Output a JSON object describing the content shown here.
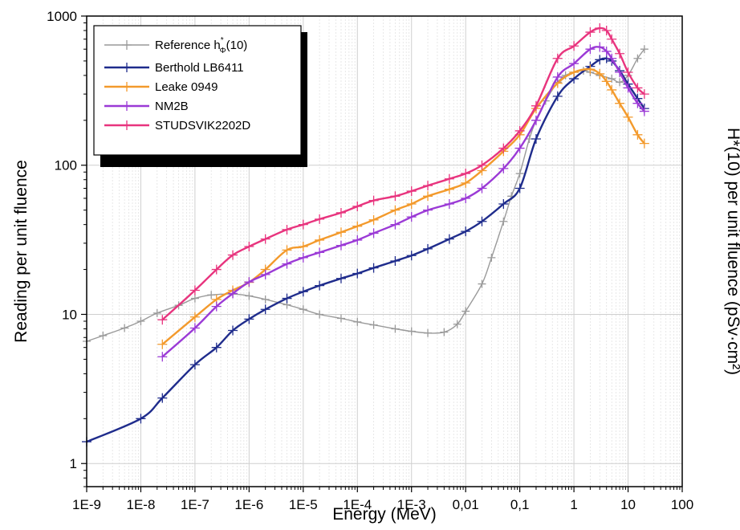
{
  "chart_data": {
    "type": "line",
    "xlabel": "Energy (MeV)",
    "ylabel": "Reading per unit fluence",
    "y2label": "H*(10) per unit fluence (pSv·cm²)",
    "xscale": "log",
    "yscale": "log",
    "xlim": [
      1e-09,
      100
    ],
    "ylim": [
      0.7,
      1000
    ],
    "x_ticks": [
      "1E-9",
      "1E-8",
      "1E-7",
      "1E-6",
      "1E-5",
      "1E-4",
      "1E-3",
      "0,01",
      "0,1",
      "1",
      "10",
      "100"
    ],
    "y_ticks": [
      "1",
      "10",
      "100",
      "1000"
    ],
    "grid": true,
    "legend_position": "top-left",
    "series": [
      {
        "name": "Reference h*Φ(10)",
        "legend_main": "Reference h",
        "legend_sup": "*",
        "legend_sub": "Φ",
        "legend_tail": "(10)",
        "color": "#9a9a9a",
        "x": [
          1e-09,
          2e-09,
          5e-09,
          1e-08,
          2e-08,
          5e-08,
          1e-07,
          2e-07,
          5e-07,
          1e-06,
          2e-06,
          5e-06,
          1e-05,
          2e-05,
          5e-05,
          0.0001,
          0.0002,
          0.0005,
          0.001,
          0.002,
          0.004,
          0.007,
          0.01,
          0.02,
          0.03,
          0.05,
          0.07,
          0.1,
          0.15,
          0.2,
          0.3,
          0.5,
          0.7,
          1,
          1.5,
          2,
          3,
          5,
          7,
          10,
          15,
          20
        ],
        "values": [
          6.6,
          7.2,
          8.1,
          9.0,
          10.2,
          11.5,
          12.8,
          13.5,
          13.7,
          13.3,
          12.6,
          11.6,
          10.8,
          10.0,
          9.4,
          8.9,
          8.5,
          8.0,
          7.7,
          7.5,
          7.6,
          8.6,
          10.5,
          16,
          24,
          42,
          62,
          88,
          150,
          200,
          270,
          360,
          400,
          420,
          430,
          420,
          400,
          380,
          360,
          400,
          520,
          600
        ]
      },
      {
        "name": "Berthold LB6411",
        "color": "#1f2c8c",
        "x": [
          1e-09,
          1e-08,
          2.5e-08,
          1e-07,
          2.5e-07,
          5e-07,
          1e-06,
          2e-06,
          5e-06,
          1e-05,
          2e-05,
          5e-05,
          0.0001,
          0.0002,
          0.0005,
          0.001,
          0.002,
          0.005,
          0.01,
          0.02,
          0.05,
          0.1,
          0.2,
          0.5,
          1,
          2,
          3,
          4,
          5,
          7,
          10,
          15,
          20
        ],
        "values": [
          1.4,
          2.0,
          2.75,
          4.6,
          6.0,
          7.8,
          9.3,
          10.8,
          12.8,
          14.2,
          15.6,
          17.4,
          18.8,
          20.5,
          22.8,
          24.8,
          27.5,
          32.0,
          36.0,
          42.0,
          55.0,
          70.0,
          150.0,
          290.0,
          380.0,
          460.0,
          510.0,
          520.0,
          500.0,
          430.0,
          350.0,
          280.0,
          240.0
        ]
      },
      {
        "name": "Leake 0949",
        "color": "#f39a2c",
        "x": [
          2.5e-08,
          1e-07,
          2.5e-07,
          5e-07,
          1e-06,
          2e-06,
          5e-06,
          1e-05,
          2e-05,
          5e-05,
          0.0001,
          0.0002,
          0.0005,
          0.001,
          0.002,
          0.005,
          0.01,
          0.02,
          0.05,
          0.1,
          0.2,
          0.5,
          1,
          2,
          3,
          4,
          5,
          7,
          10,
          15,
          20
        ],
        "values": [
          6.3,
          9.6,
          12.6,
          14.5,
          16.4,
          20.0,
          27.0,
          28.5,
          31.5,
          35.5,
          39.0,
          43.0,
          50.0,
          55.0,
          62.0,
          69.0,
          76.0,
          92.0,
          124.0,
          160.0,
          240.0,
          355.0,
          420.0,
          440.0,
          410.0,
          365.0,
          320.0,
          260.0,
          210.0,
          160.0,
          140.0
        ]
      },
      {
        "name": "NM2B",
        "color": "#9b3ad6",
        "x": [
          2.5e-08,
          1e-07,
          2.5e-07,
          5e-07,
          1e-06,
          2e-06,
          5e-06,
          1e-05,
          2e-05,
          5e-05,
          0.0001,
          0.0002,
          0.0005,
          0.001,
          0.002,
          0.005,
          0.01,
          0.02,
          0.05,
          0.1,
          0.2,
          0.5,
          1,
          2,
          3,
          4,
          5,
          7,
          10,
          15,
          20
        ],
        "values": [
          5.2,
          8.1,
          11.3,
          13.8,
          16.5,
          18.5,
          21.8,
          24.0,
          26.0,
          29.0,
          31.5,
          35.0,
          40.0,
          45.0,
          50.0,
          55.0,
          60.0,
          70.0,
          95.0,
          130.0,
          200.0,
          390.0,
          480.0,
          600.0,
          620.0,
          580.0,
          520.0,
          420.0,
          330.0,
          260.0,
          230.0
        ]
      },
      {
        "name": "STUDSVIK2202D",
        "color": "#e8347e",
        "x": [
          2.5e-08,
          1e-07,
          2.5e-07,
          5e-07,
          1e-06,
          2e-06,
          5e-06,
          1e-05,
          2e-05,
          5e-05,
          0.0001,
          0.0002,
          0.0005,
          0.001,
          0.002,
          0.005,
          0.01,
          0.02,
          0.05,
          0.1,
          0.2,
          0.5,
          1,
          2,
          3,
          4,
          5,
          7,
          10,
          15,
          20
        ],
        "values": [
          9.2,
          14.5,
          20.0,
          25.0,
          28.5,
          32.0,
          37.0,
          40.0,
          43.5,
          48.0,
          53.0,
          58.0,
          62.0,
          67.0,
          73.0,
          81.0,
          88.0,
          100.0,
          130.0,
          170.0,
          250.0,
          520.0,
          630.0,
          780.0,
          830.0,
          800.0,
          700.0,
          560.0,
          420.0,
          330.0,
          300.0
        ]
      }
    ]
  }
}
